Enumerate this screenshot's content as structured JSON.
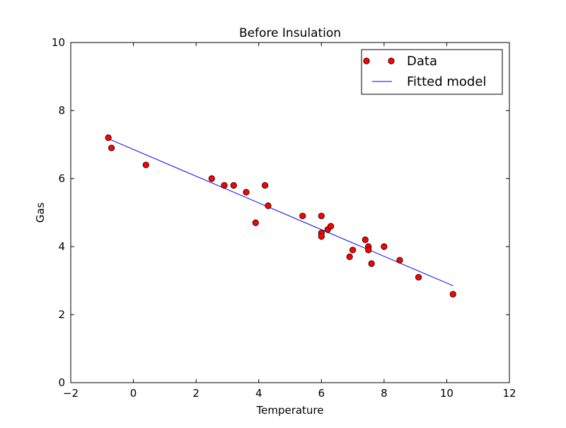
{
  "chart_data": {
    "type": "scatter",
    "title": "Before Insulation",
    "xlabel": "Temperature",
    "ylabel": "Gas",
    "xlim": [
      -2,
      12
    ],
    "ylim": [
      0,
      10
    ],
    "xticks": [
      -2,
      0,
      2,
      4,
      6,
      8,
      10,
      12
    ],
    "xtick_labels": [
      "−2",
      "0",
      "2",
      "4",
      "6",
      "8",
      "10",
      "12"
    ],
    "yticks": [
      0,
      2,
      4,
      6,
      8,
      10
    ],
    "ytick_labels": [
      "0",
      "2",
      "4",
      "6",
      "8",
      "10"
    ],
    "grid": false,
    "legend": {
      "placement": "top-right",
      "entries": [
        "Data",
        "Fitted model"
      ]
    },
    "series": [
      {
        "name": "Data",
        "kind": "scatter",
        "color": "#ff0000",
        "points": [
          {
            "x": -0.8,
            "y": 7.2
          },
          {
            "x": -0.7,
            "y": 6.9
          },
          {
            "x": 0.4,
            "y": 6.4
          },
          {
            "x": 2.5,
            "y": 6.0
          },
          {
            "x": 2.9,
            "y": 5.8
          },
          {
            "x": 3.2,
            "y": 5.8
          },
          {
            "x": 3.6,
            "y": 5.6
          },
          {
            "x": 3.9,
            "y": 4.7
          },
          {
            "x": 4.2,
            "y": 5.8
          },
          {
            "x": 4.3,
            "y": 5.2
          },
          {
            "x": 5.4,
            "y": 4.9
          },
          {
            "x": 6.0,
            "y": 4.9
          },
          {
            "x": 6.0,
            "y": 4.4
          },
          {
            "x": 6.0,
            "y": 4.3
          },
          {
            "x": 6.2,
            "y": 4.5
          },
          {
            "x": 6.3,
            "y": 4.6
          },
          {
            "x": 6.9,
            "y": 3.7
          },
          {
            "x": 7.0,
            "y": 3.9
          },
          {
            "x": 7.4,
            "y": 4.2
          },
          {
            "x": 7.5,
            "y": 4.0
          },
          {
            "x": 7.5,
            "y": 3.9
          },
          {
            "x": 7.6,
            "y": 3.5
          },
          {
            "x": 8.0,
            "y": 4.0
          },
          {
            "x": 8.5,
            "y": 3.6
          },
          {
            "x": 9.1,
            "y": 3.1
          },
          {
            "x": 10.2,
            "y": 2.6
          }
        ]
      },
      {
        "name": "Fitted model",
        "kind": "line",
        "color": "#0000ff",
        "points": [
          {
            "x": -0.8,
            "y": 7.17
          },
          {
            "x": 10.2,
            "y": 2.85
          }
        ]
      }
    ]
  }
}
